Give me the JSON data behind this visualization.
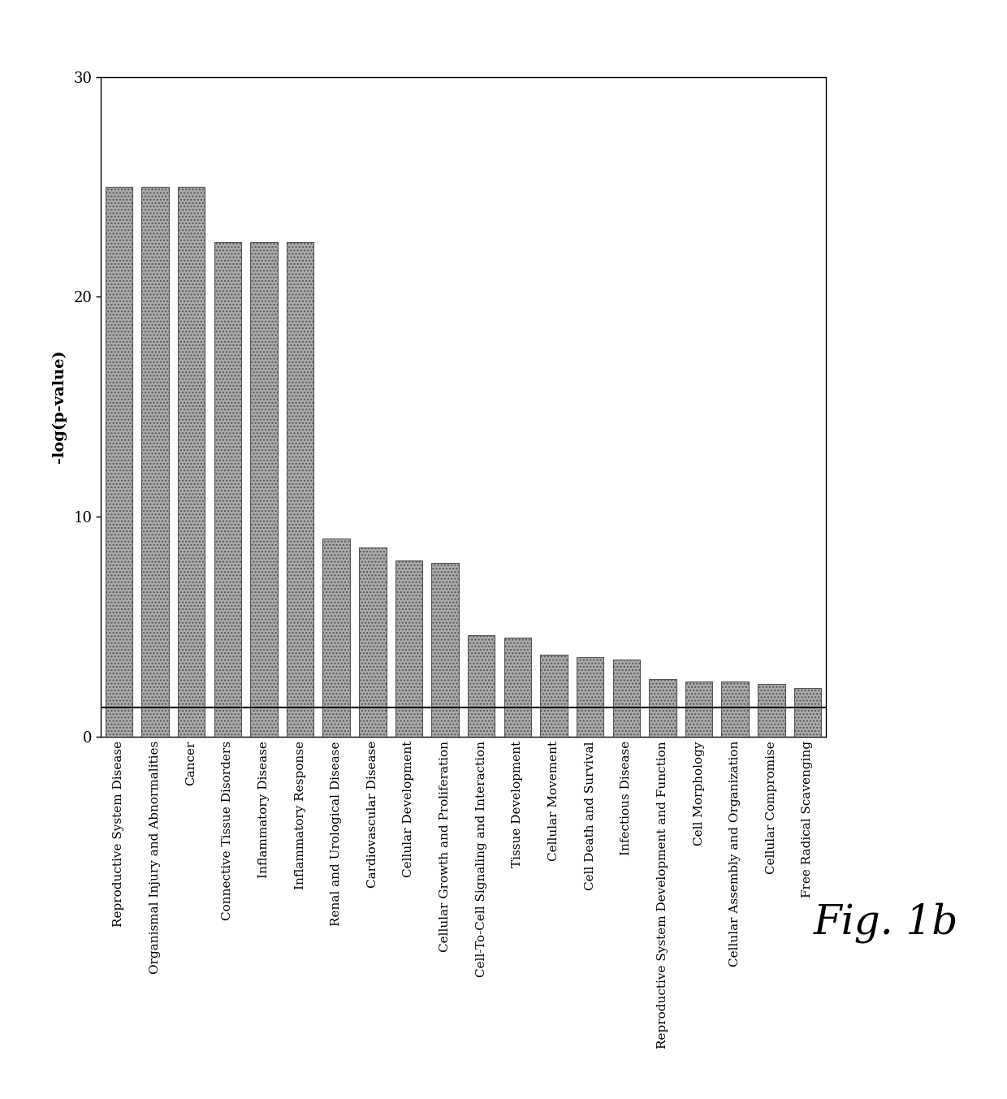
{
  "categories": [
    "Reproductive System Disease",
    "Organismal Injury and Abnormalities",
    "Cancer",
    "Connective Tissue Disorders",
    "Inflammatory Disease",
    "Inflammatory Response",
    "Renal and Urological Disease",
    "Cardiovascular Disease",
    "Cellular Development",
    "Cellular Growth and Proliferation",
    "Cell-To-Cell Signaling and Interaction",
    "Tissue Development",
    "Cellular Movement",
    "Cell Death and Survival",
    "Infectious Disease",
    "Reproductive System Development and Function",
    "Cell Morphology",
    "Cellular Assembly and Organization",
    "Cellular Compromise",
    "Free Radical Scavenging"
  ],
  "values": [
    25.0,
    25.0,
    25.0,
    22.5,
    22.5,
    22.5,
    9.0,
    8.6,
    8.0,
    7.9,
    4.6,
    4.5,
    3.7,
    3.6,
    3.5,
    2.6,
    2.5,
    2.5,
    2.4,
    2.2
  ],
  "bar_color": "#aaaaaa",
  "bar_edgecolor": "#555555",
  "threshold_line": 1.3,
  "ylim": [
    0,
    30
  ],
  "yticks": [
    0,
    10,
    20,
    30
  ],
  "ylabel": "-log(p-value)",
  "background_color": "#ffffff",
  "fig_label": "Fig. 1b",
  "fig_label_fontsize": 36,
  "ylabel_fontsize": 14,
  "ytick_fontsize": 13,
  "xtick_fontsize": 11
}
